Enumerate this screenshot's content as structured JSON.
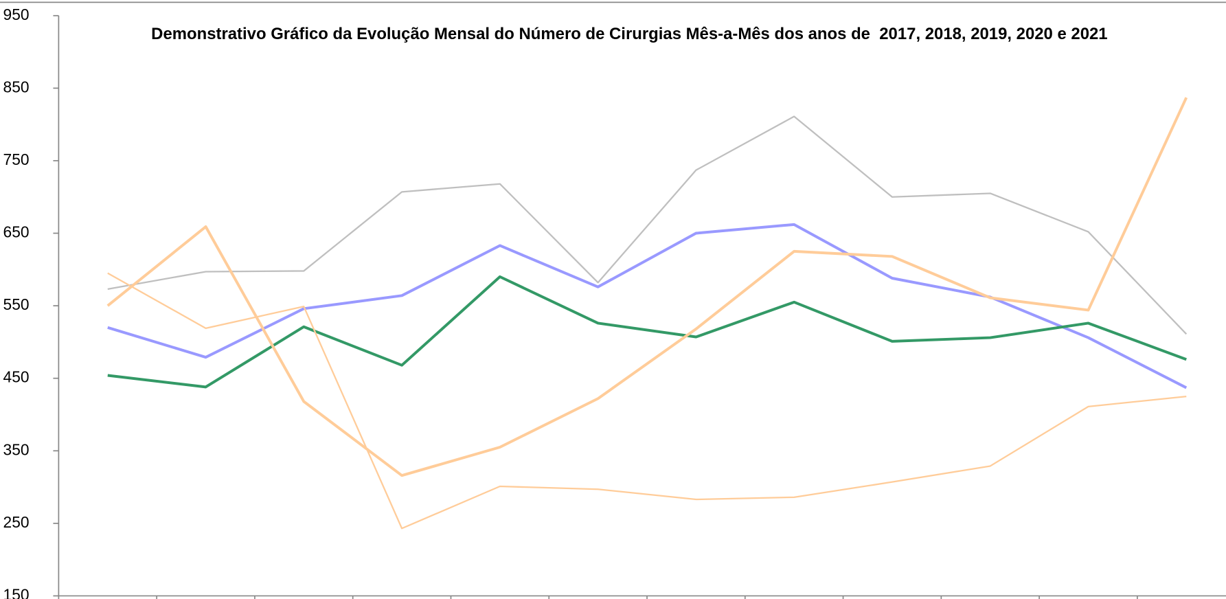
{
  "chart_data": {
    "type": "line",
    "title": "Demonstrativo Gráfico da Evolução Mensal do Número de Cirurgias Mês-a-Mês dos anos de  2017, 2018, 2019, 2020 e 2021",
    "categories": [
      null,
      null,
      null,
      null,
      null,
      null,
      null,
      null,
      null,
      null,
      null,
      null
    ],
    "series": [
      {
        "color": "#bfbfbf",
        "line_width": 2,
        "values": [
          573,
          597,
          598,
          707,
          718,
          582,
          737,
          811,
          700,
          705,
          652,
          511
        ]
      },
      {
        "color": "#9999ff",
        "line_width": 3.5,
        "values": [
          520,
          479,
          546,
          564,
          633,
          576,
          650,
          662,
          588,
          562,
          506,
          437
        ]
      },
      {
        "color": "#339966",
        "line_width": 3.5,
        "values": [
          454,
          438,
          521,
          468,
          590,
          526,
          507,
          555,
          501,
          506,
          526,
          476
        ]
      },
      {
        "color": "#ffcc99",
        "line_width": 3.5,
        "values": [
          550,
          659,
          418,
          316,
          355,
          422,
          518,
          625,
          618,
          561,
          544,
          837
        ]
      },
      {
        "color": "#ffcc99",
        "line_width": 2,
        "values": [
          595,
          519,
          549,
          243,
          301,
          297,
          283,
          286,
          307,
          329,
          411,
          425
        ]
      }
    ],
    "ylim": [
      150,
      950
    ],
    "yticks": [
      150,
      250,
      350,
      450,
      550,
      650,
      750,
      850,
      950
    ],
    "grid": false
  }
}
